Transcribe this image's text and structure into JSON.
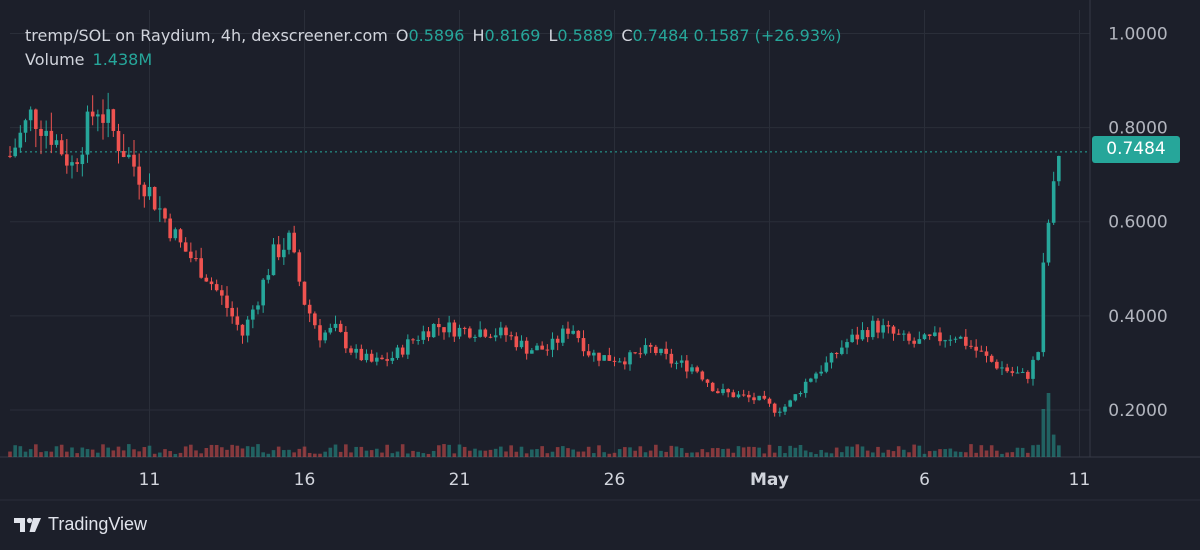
{
  "legend": {
    "title": "tremp/SOL on Raydium, 4h, dexscreener.com",
    "open_label": "O",
    "open": "0.5896",
    "high_label": "H",
    "high": "0.8169",
    "low_label": "L",
    "low": "0.5889",
    "close_label": "C",
    "close": "0.7484",
    "change": "0.1587 (+26.93%)",
    "volume_label": "Volume",
    "volume": "1.438M"
  },
  "price_tag": "0.7484",
  "branding": "TradingView",
  "colors": {
    "up": "#26a69a",
    "down": "#ef5350",
    "background": "#1c1f2a",
    "grid": "#2a2e39"
  },
  "chart_data": {
    "type": "candlestick",
    "pair": "tremp/SOL",
    "interval": "4h",
    "ylim": [
      0.1,
      1.05
    ],
    "y_ticks": [
      "1.0000",
      "0.8000",
      "0.6000",
      "0.4000",
      "0.2000"
    ],
    "y_tick_values": [
      1.0,
      0.8,
      0.6,
      0.4,
      0.2
    ],
    "x_ticks": [
      "11",
      "16",
      "21",
      "26",
      "May",
      "6",
      "11"
    ],
    "x_tick_days": [
      11,
      16,
      21,
      26,
      31,
      36,
      41
    ],
    "current_price": 0.7484,
    "grid": true,
    "price_points": [
      [
        6.5,
        0.74
      ],
      [
        7.2,
        0.83
      ],
      [
        7.8,
        0.79
      ],
      [
        8.5,
        0.72
      ],
      [
        9.3,
        0.85
      ],
      [
        10,
        0.77
      ],
      [
        10.6,
        0.71
      ],
      [
        11.3,
        0.63
      ],
      [
        12,
        0.55
      ],
      [
        12.8,
        0.49
      ],
      [
        13.4,
        0.43
      ],
      [
        14,
        0.36
      ],
      [
        14.5,
        0.44
      ],
      [
        15,
        0.53
      ],
      [
        15.5,
        0.56
      ],
      [
        16,
        0.43
      ],
      [
        16.5,
        0.36
      ],
      [
        17,
        0.37
      ],
      [
        17.6,
        0.32
      ],
      [
        18.2,
        0.3
      ],
      [
        18.8,
        0.31
      ],
      [
        19.5,
        0.35
      ],
      [
        20.2,
        0.38
      ],
      [
        21,
        0.37
      ],
      [
        21.8,
        0.37
      ],
      [
        22.5,
        0.36
      ],
      [
        23.2,
        0.33
      ],
      [
        23.9,
        0.33
      ],
      [
        24.6,
        0.38
      ],
      [
        25.2,
        0.32
      ],
      [
        25.8,
        0.31
      ],
      [
        26.5,
        0.31
      ],
      [
        27.2,
        0.33
      ],
      [
        27.9,
        0.3
      ],
      [
        28.6,
        0.29
      ],
      [
        29.3,
        0.24
      ],
      [
        30,
        0.23
      ],
      [
        30.7,
        0.22
      ],
      [
        31.2,
        0.2
      ],
      [
        31.6,
        0.21
      ],
      [
        32.3,
        0.27
      ],
      [
        32.9,
        0.3
      ],
      [
        33.4,
        0.34
      ],
      [
        33.9,
        0.36
      ],
      [
        34.4,
        0.38
      ],
      [
        35,
        0.36
      ],
      [
        35.6,
        0.34
      ],
      [
        36.3,
        0.35
      ],
      [
        37,
        0.36
      ],
      [
        37.6,
        0.33
      ],
      [
        38.2,
        0.3
      ],
      [
        38.8,
        0.28
      ],
      [
        39.3,
        0.27
      ],
      [
        39.7,
        0.33
      ],
      [
        39.9,
        0.58
      ],
      [
        40.1,
        0.62
      ],
      [
        40.3,
        0.75
      ]
    ],
    "volume_spikes": [
      [
        39.8,
        0.75
      ],
      [
        40,
        1.0
      ],
      [
        40.2,
        0.35
      ]
    ]
  }
}
